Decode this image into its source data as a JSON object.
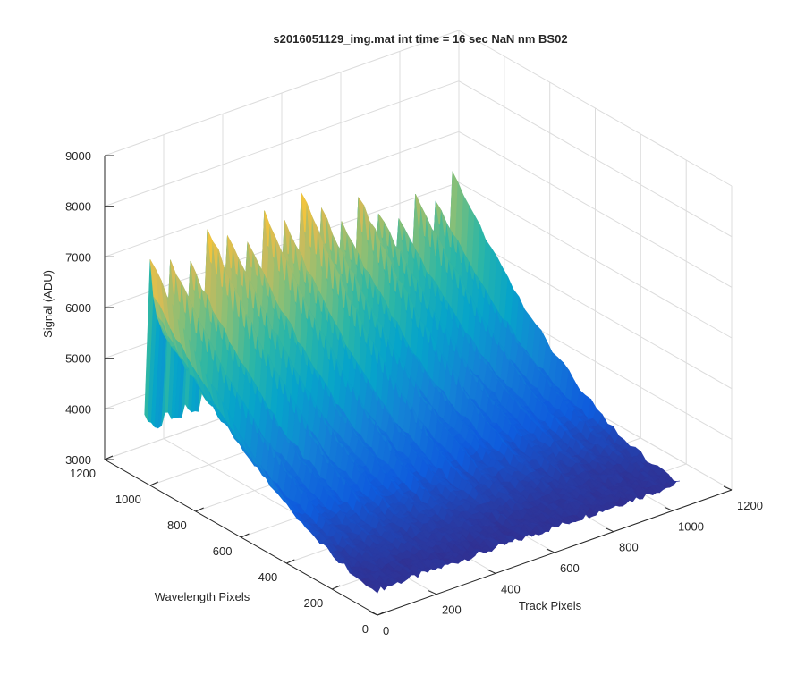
{
  "figure": {
    "background": "#ffffff",
    "axes_color": "#262626",
    "grid_color": "#dcdcdc"
  },
  "chart_data": {
    "type": "surface",
    "title": "s2016051129_img.mat int time = 16 sec  NaN nm BS02",
    "xlabel": "Track Pixels",
    "ylabel": "Wavelength Pixels",
    "zlabel": "Signal (ADU)",
    "xlim": [
      0,
      1200
    ],
    "ylim": [
      0,
      1200
    ],
    "zlim": [
      3000,
      9000
    ],
    "xticks": [
      "0",
      "200",
      "400",
      "600",
      "800",
      "1000",
      "1200"
    ],
    "yticks": [
      "0",
      "200",
      "400",
      "600",
      "800",
      "1000",
      "1200"
    ],
    "zticks": [
      "3000",
      "4000",
      "5000",
      "6000",
      "7000",
      "8000",
      "9000"
    ],
    "grid": true,
    "colormap": "parula",
    "colormap_stops": [
      "#352a87",
      "#0f5cdd",
      "#1481d6",
      "#06a4ca",
      "#2eb7a4",
      "#87bf77",
      "#d1bb59",
      "#fec832",
      "#f9fb0e"
    ],
    "surface": {
      "description_values": {
        "baseline_signal": 3500,
        "peak_signal": 8000,
        "stripe_count": 16,
        "data_track_range": [
          0,
          1024
        ],
        "data_wavelength_range": [
          0,
          1024
        ]
      }
    }
  }
}
